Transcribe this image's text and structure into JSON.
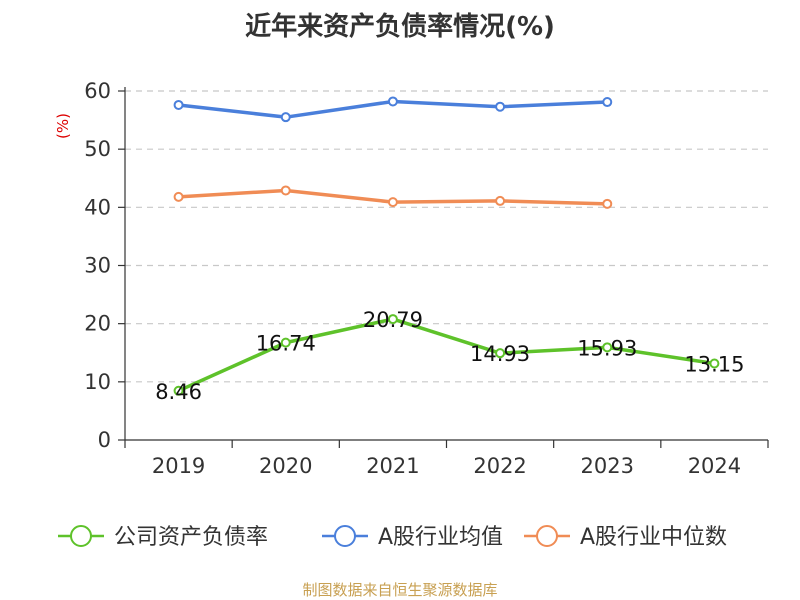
{
  "title": "近年来资产负债率情况(%)",
  "source": "制图数据来自恒生聚源数据库",
  "chart_data": {
    "type": "line",
    "title": "近年来资产负债率情况(%)",
    "ylabel": "(%)",
    "xlabel": "",
    "categories": [
      "2019",
      "2020",
      "2021",
      "2022",
      "2023",
      "2024"
    ],
    "ylim": [
      0,
      60
    ],
    "yticks": [
      0,
      10,
      20,
      30,
      40,
      50,
      60
    ],
    "grid": true,
    "legend_position": "bottom",
    "series": [
      {
        "name": "公司资产负债率",
        "color": "#5ec22a",
        "values": [
          8.46,
          16.74,
          20.79,
          14.93,
          15.93,
          13.15
        ],
        "labels": [
          "8.46",
          "16.74",
          "20.79",
          "14.93",
          "15.93",
          "13.15"
        ],
        "show_labels": true
      },
      {
        "name": "A股行业均值",
        "color": "#4a7fdb",
        "values": [
          57.6,
          55.5,
          58.2,
          57.3,
          58.1,
          null
        ],
        "show_labels": false
      },
      {
        "name": "A股行业中位数",
        "color": "#f08c55",
        "values": [
          41.8,
          42.9,
          40.9,
          41.1,
          40.6,
          null
        ],
        "show_labels": false
      }
    ]
  }
}
